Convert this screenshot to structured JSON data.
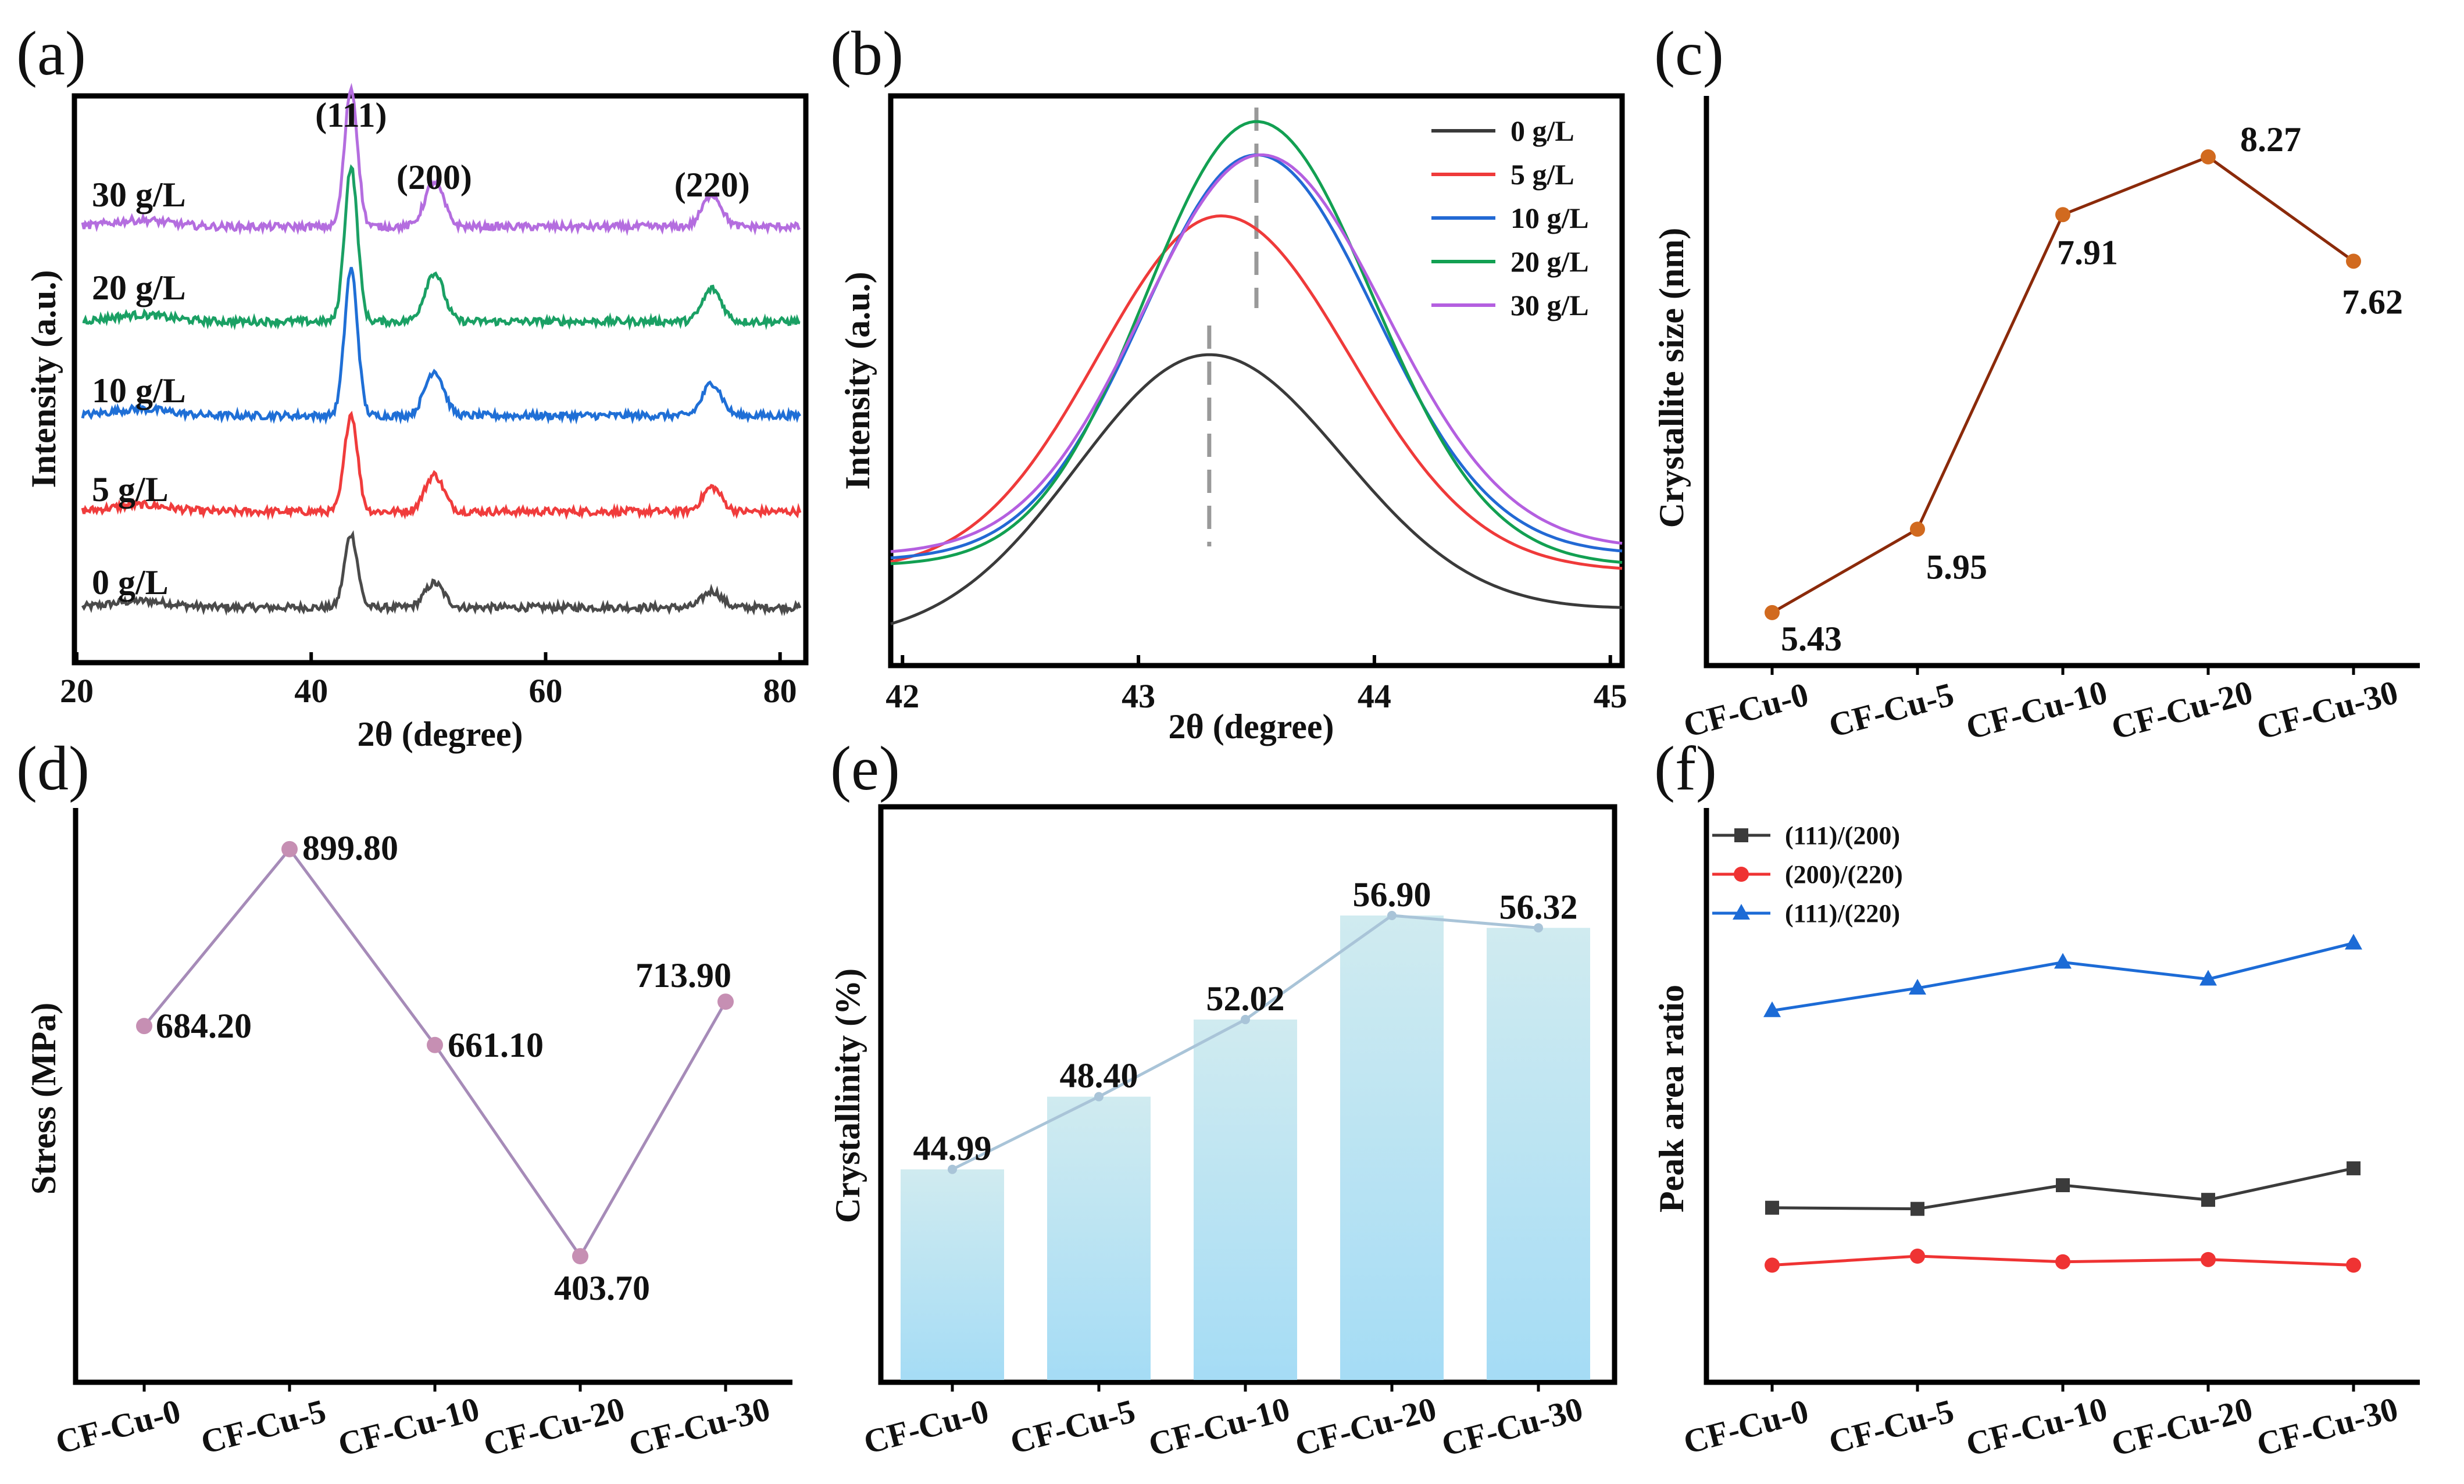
{
  "colors": {
    "a_series": [
      "#4a4a4a",
      "#f03c3c",
      "#1f6fd6",
      "#1aa064",
      "#b46ddf"
    ],
    "b_series": [
      "#3a3a3a",
      "#ef3a3a",
      "#2269d4",
      "#12a052",
      "#b45fe0"
    ],
    "c_line": "#8b2a0a",
    "c_marker": "#d16a1f",
    "d_line": "#a68bb8",
    "d_marker": "#c68fb3",
    "e_bar_top": "#cfeaf0",
    "e_bar_bottom": "#a7ddf4",
    "e_line": "#a9c4d8",
    "f_series": [
      "#3b3b3b",
      "#ef3333",
      "#1c6bd6"
    ]
  },
  "chart_data": [
    {
      "panel": "(a)",
      "type": "line",
      "xlabel": "2θ (degree)",
      "ylabel": "Intensity (a.u.)",
      "xlim": [
        20,
        82
      ],
      "xticks": [
        "20",
        "40",
        "60",
        "80"
      ],
      "peak_labels": [
        {
          "text": "(111)",
          "x": 43.4
        },
        {
          "text": "(200)",
          "x": 50.5
        },
        {
          "text": "(220)",
          "x": 74.2
        }
      ],
      "series": [
        {
          "name": "0 g/L",
          "peaks": [
            {
              "x": 43.4,
              "h": 0.9
            },
            {
              "x": 50.5,
              "h": 0.3
            },
            {
              "x": 74.2,
              "h": 0.2
            }
          ]
        },
        {
          "name": "5 g/L",
          "peaks": [
            {
              "x": 43.4,
              "h": 1.2
            },
            {
              "x": 50.5,
              "h": 0.45
            },
            {
              "x": 74.2,
              "h": 0.3
            }
          ]
        },
        {
          "name": "10 g/L",
          "peaks": [
            {
              "x": 43.4,
              "h": 1.8
            },
            {
              "x": 50.5,
              "h": 0.55
            },
            {
              "x": 74.2,
              "h": 0.4
            }
          ]
        },
        {
          "name": "20 g/L",
          "peaks": [
            {
              "x": 43.4,
              "h": 1.9
            },
            {
              "x": 50.5,
              "h": 0.6
            },
            {
              "x": 74.2,
              "h": 0.4
            }
          ]
        },
        {
          "name": "30 g/L",
          "peaks": [
            {
              "x": 43.4,
              "h": 1.7
            },
            {
              "x": 50.5,
              "h": 0.55
            },
            {
              "x": 74.2,
              "h": 0.4
            }
          ]
        }
      ]
    },
    {
      "panel": "(b)",
      "type": "line",
      "xlabel": "2θ (degree)",
      "ylabel": "Intensity (a.u.)",
      "xlim": [
        41.95,
        45.05
      ],
      "xticks": [
        "42",
        "43",
        "44",
        "45"
      ],
      "dashed_lines_x": [
        43.3,
        43.5
      ],
      "legend": [
        "0 g/L",
        "5 g/L",
        "10 g/L",
        "20 g/L",
        "30 g/L"
      ],
      "series": [
        {
          "name": "0 g/L",
          "center": 43.3,
          "peak": 0.56,
          "base_left": 0.05,
          "base_right": 0.1,
          "width": 0.55
        },
        {
          "name": "5 g/L",
          "center": 43.35,
          "peak": 0.81,
          "base_left": 0.17,
          "base_right": 0.17,
          "width": 0.52
        },
        {
          "name": "10 g/L",
          "center": 43.5,
          "peak": 0.92,
          "base_left": 0.19,
          "base_right": 0.2,
          "width": 0.48
        },
        {
          "name": "20 g/L",
          "center": 43.5,
          "peak": 0.98,
          "base_left": 0.18,
          "base_right": 0.18,
          "width": 0.47
        },
        {
          "name": "30 g/L",
          "center": 43.52,
          "peak": 0.92,
          "base_left": 0.2,
          "base_right": 0.21,
          "width": 0.5
        }
      ]
    },
    {
      "panel": "(c)",
      "type": "line",
      "ylabel": "Crystallite size (nm)",
      "categories": [
        "CF-Cu-0",
        "CF-Cu-5",
        "CF-Cu-10",
        "CF-Cu-20",
        "CF-Cu-30"
      ],
      "values": [
        5.43,
        5.95,
        7.91,
        8.27,
        7.62
      ],
      "labels": [
        "5.43",
        "5.95",
        "7.91",
        "8.27",
        "7.62"
      ],
      "ylim": [
        5.1,
        8.65
      ]
    },
    {
      "panel": "(d)",
      "type": "line",
      "ylabel": "Stress (MPa)",
      "categories": [
        "CF-Cu-0",
        "CF-Cu-5",
        "CF-Cu-10",
        "CF-Cu-20",
        "CF-Cu-30"
      ],
      "values": [
        684.2,
        899.8,
        661.1,
        403.7,
        713.9
      ],
      "labels": [
        "684.20",
        "899.80",
        "661.10",
        "403.70",
        "713.90"
      ],
      "ylim": [
        250,
        950
      ]
    },
    {
      "panel": "(e)",
      "type": "bar",
      "ylabel": "Crystallinity (%)",
      "categories": [
        "CF-Cu-0",
        "CF-Cu-5",
        "CF-Cu-10",
        "CF-Cu-20",
        "CF-Cu-30"
      ],
      "values": [
        44.99,
        48.4,
        52.02,
        56.9,
        56.32
      ],
      "labels": [
        "44.99",
        "48.40",
        "52.02",
        "56.90",
        "56.32"
      ],
      "ylim": [
        35,
        62
      ]
    },
    {
      "panel": "(f)",
      "type": "line",
      "ylabel": "Peak area ratio",
      "categories": [
        "CF-Cu-0",
        "CF-Cu-5",
        "CF-Cu-10",
        "CF-Cu-20",
        "CF-Cu-30"
      ],
      "ylim": [
        0,
        5.1
      ],
      "series": [
        {
          "name": "(111)/(200)",
          "marker": "square",
          "values": [
            1.55,
            1.54,
            1.75,
            1.62,
            1.9
          ]
        },
        {
          "name": "(200)/(220)",
          "marker": "circle",
          "values": [
            1.04,
            1.12,
            1.07,
            1.09,
            1.04
          ]
        },
        {
          "name": "(111)/(220)",
          "marker": "triangle",
          "values": [
            3.3,
            3.5,
            3.73,
            3.58,
            3.9
          ]
        }
      ]
    }
  ]
}
